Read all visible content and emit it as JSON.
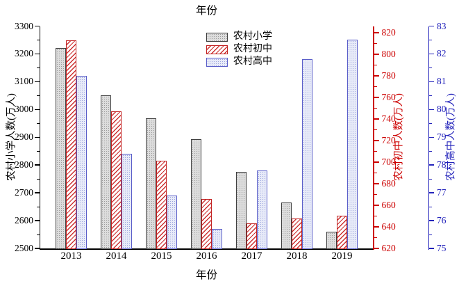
{
  "chart_data": {
    "type": "bar",
    "title_top": "年份",
    "xlabel": "年份",
    "categories": [
      "2013",
      "2014",
      "2015",
      "2016",
      "2017",
      "2018",
      "2019"
    ],
    "series": [
      {
        "key": "primary",
        "name": "农村小学",
        "axis": "left",
        "values": [
          3220,
          3050,
          2968,
          2892,
          2776,
          2666,
          2560
        ]
      },
      {
        "key": "junior",
        "name": "农村初中",
        "axis": "red",
        "values": [
          813,
          747,
          701,
          666,
          643,
          648,
          650
        ]
      },
      {
        "key": "senior",
        "name": "农村高中",
        "axis": "blue",
        "values": [
          81.2,
          78.4,
          76.9,
          75.7,
          77.8,
          81.8,
          82.5
        ]
      }
    ],
    "axes": {
      "left": {
        "label": "农村小学人数(万人)",
        "color": "#000000",
        "min": 2500,
        "max": 3300,
        "minor_step": 50,
        "ticks": [
          2500,
          2600,
          2700,
          2800,
          2900,
          3000,
          3100,
          3200,
          3300
        ]
      },
      "red": {
        "label": "农村初中人数(万人)",
        "color": "#cc0000",
        "min": 620,
        "max": 826,
        "minor_step": 10,
        "ticks": [
          620,
          640,
          660,
          680,
          700,
          720,
          740,
          760,
          780,
          800,
          820
        ]
      },
      "blue": {
        "label": "农村高中人数(万人)",
        "color": "#2424bb",
        "min": 75,
        "max": 83,
        "minor_step": 0.5,
        "ticks": [
          75,
          76,
          77,
          78,
          79,
          80,
          81,
          82,
          83
        ]
      }
    },
    "legend": [
      "农村小学",
      "农村初中",
      "农村高中"
    ],
    "grid": "off",
    "legend_position": "top-center-right"
  }
}
